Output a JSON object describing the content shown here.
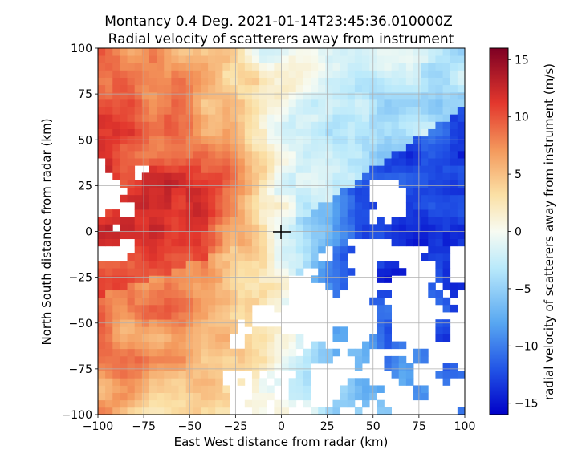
{
  "chart_data": {
    "type": "heatmap",
    "title_line1": "Montancy 0.4 Deg. 2021-01-14T23:45:36.010000Z",
    "title_line2": "Radial velocity of scatterers away from instrument",
    "xlabel": "East West distance from radar (km)",
    "ylabel": "North South distance from radar (km)",
    "xlim": [
      -100,
      100
    ],
    "ylim": [
      -100,
      100
    ],
    "xticks": [
      -100,
      -75,
      -50,
      -25,
      0,
      25,
      50,
      75,
      100
    ],
    "yticks": [
      -100,
      -75,
      -50,
      -25,
      0,
      25,
      50,
      75,
      100
    ],
    "xtick_labels": [
      "−100",
      "−75",
      "−50",
      "−25",
      "0",
      "25",
      "50",
      "75",
      "100"
    ],
    "ytick_labels": [
      "−100",
      "−75",
      "−50",
      "−25",
      "0",
      "25",
      "50",
      "75",
      "100"
    ],
    "grid": true,
    "colorbar": {
      "label": "radial velocity of scatterers away from instrument (m/s)",
      "range": [
        -16,
        16
      ],
      "ticks": [
        -15,
        -10,
        -5,
        0,
        5,
        10,
        15
      ],
      "tick_labels": [
        "−15",
        "−10",
        "−5",
        "0",
        "5",
        "10",
        "15"
      ],
      "colormap": [
        "#0000c8",
        "#2255e6",
        "#58a7f1",
        "#b9e9fb",
        "#f7fbf2",
        "#fbe0a5",
        "#f49a5d",
        "#e3372d",
        "#7e0023"
      ]
    },
    "field": {
      "description": "radar radial velocity scan",
      "west_sector_velocity": 12,
      "east_sector_velocity": -14,
      "radar_location": [
        0,
        0
      ]
    }
  }
}
